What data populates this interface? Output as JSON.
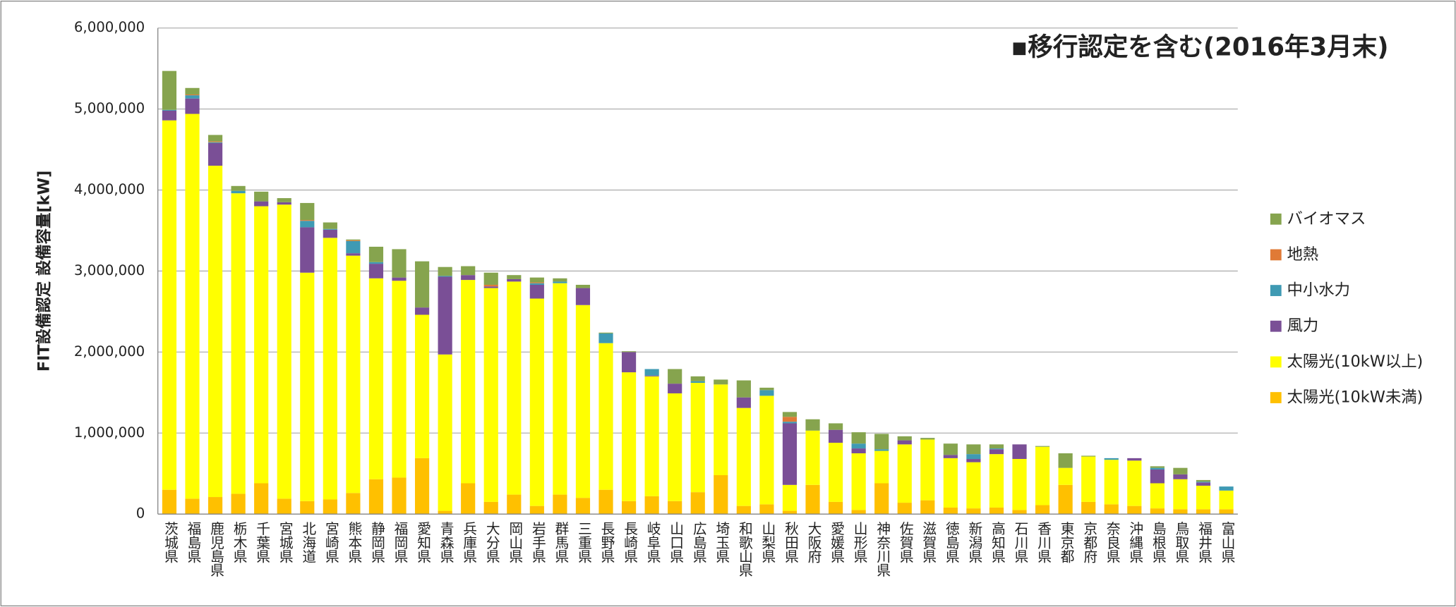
{
  "chart_data": {
    "type": "bar",
    "stacked": true,
    "ylabel": "FIT設備認定 設備容量[kW]",
    "annotation": "▪移行認定を含む(2016年3月末)",
    "ylim": [
      0,
      6000000
    ],
    "yticks": [
      0,
      {
        "value": 1000000,
        "label": "1,000,000"
      },
      {
        "value": 2000000,
        "label": "2,000,000"
      },
      {
        "value": 3000000,
        "label": "3,000,000"
      },
      {
        "value": 4000000,
        "label": "4,000,000"
      },
      {
        "value": 5000000,
        "label": "5,000,000"
      },
      {
        "value": 6000000,
        "label": "6,000,000"
      }
    ],
    "grid": true,
    "legend": "right",
    "categories": [
      "茨城県",
      "福島県",
      "鹿児島県",
      "栃木県",
      "千葉県",
      "宮城県",
      "北海道",
      "宮崎県",
      "熊本県",
      "静岡県",
      "福岡県",
      "愛知県",
      "青森県",
      "兵庫県",
      "大分県",
      "岡山県",
      "岩手県",
      "群馬県",
      "三重県",
      "長野県",
      "長崎県",
      "岐阜県",
      "山口県",
      "広島県",
      "埼玉県",
      "和歌山県",
      "山梨県",
      "秋田県",
      "大阪府",
      "愛媛県",
      "山形県",
      "神奈川県",
      "佐賀県",
      "滋賀県",
      "徳島県",
      "新潟県",
      "高知県",
      "石川県",
      "香川県",
      "東京都",
      "京都府",
      "奈良県",
      "沖縄県",
      "島根県",
      "鳥取県",
      "福井県",
      "富山県"
    ],
    "series": [
      {
        "name": "太陽光(10kW未満)",
        "color": "#ffc000",
        "values": [
          300000,
          190000,
          210000,
          250000,
          380000,
          190000,
          160000,
          180000,
          260000,
          430000,
          450000,
          690000,
          40000,
          380000,
          150000,
          240000,
          100000,
          240000,
          200000,
          300000,
          160000,
          220000,
          160000,
          270000,
          480000,
          100000,
          120000,
          40000,
          360000,
          150000,
          50000,
          380000,
          140000,
          170000,
          80000,
          70000,
          80000,
          50000,
          110000,
          360000,
          150000,
          120000,
          100000,
          70000,
          60000,
          60000,
          60000
        ]
      },
      {
        "name": "太陽光(10kW以上)",
        "color": "#ffff00",
        "values": [
          4560000,
          4750000,
          4090000,
          3710000,
          3420000,
          3630000,
          2820000,
          3230000,
          2930000,
          2480000,
          2430000,
          1770000,
          1930000,
          2510000,
          2640000,
          2630000,
          2560000,
          2610000,
          2380000,
          1810000,
          1590000,
          1480000,
          1330000,
          1350000,
          1120000,
          1210000,
          1340000,
          320000,
          670000,
          730000,
          700000,
          400000,
          720000,
          750000,
          610000,
          570000,
          660000,
          630000,
          720000,
          210000,
          560000,
          550000,
          560000,
          310000,
          370000,
          290000,
          230000
        ]
      },
      {
        "name": "風力",
        "color": "#7a4f96",
        "values": [
          120000,
          190000,
          280000,
          0,
          60000,
          30000,
          560000,
          100000,
          30000,
          180000,
          40000,
          90000,
          960000,
          60000,
          20000,
          30000,
          170000,
          0,
          210000,
          0,
          250000,
          10000,
          120000,
          0,
          0,
          130000,
          0,
          760000,
          0,
          160000,
          60000,
          0,
          50000,
          0,
          40000,
          40000,
          60000,
          180000,
          0,
          0,
          0,
          0,
          30000,
          170000,
          60000,
          40000,
          0
        ]
      },
      {
        "name": "中小水力",
        "color": "#3f9ab3",
        "values": [
          10000,
          40000,
          10000,
          30000,
          0,
          0,
          80000,
          10000,
          150000,
          20000,
          0,
          0,
          10000,
          0,
          0,
          0,
          20000,
          20000,
          0,
          120000,
          0,
          80000,
          0,
          20000,
          0,
          0,
          70000,
          20000,
          0,
          0,
          60000,
          20000,
          0,
          0,
          0,
          60000,
          10000,
          0,
          0,
          0,
          0,
          20000,
          0,
          20000,
          0,
          10000,
          50000
        ]
      },
      {
        "name": "地熱",
        "color": "#e07a36",
        "values": [
          0,
          10000,
          10000,
          0,
          0,
          0,
          10000,
          0,
          10000,
          0,
          0,
          0,
          0,
          0,
          20000,
          0,
          10000,
          0,
          0,
          0,
          0,
          0,
          0,
          0,
          0,
          0,
          0,
          60000,
          0,
          0,
          0,
          0,
          0,
          0,
          0,
          0,
          0,
          0,
          0,
          0,
          0,
          0,
          0,
          0,
          0,
          0,
          0
        ]
      },
      {
        "name": "バイオマス",
        "color": "#86a44e",
        "values": [
          480000,
          80000,
          80000,
          60000,
          120000,
          50000,
          210000,
          80000,
          10000,
          190000,
          350000,
          570000,
          110000,
          110000,
          150000,
          50000,
          60000,
          40000,
          40000,
          10000,
          10000,
          0,
          180000,
          60000,
          60000,
          210000,
          30000,
          60000,
          140000,
          80000,
          140000,
          190000,
          50000,
          20000,
          140000,
          120000,
          50000,
          0,
          10000,
          180000,
          10000,
          0,
          0,
          20000,
          80000,
          20000,
          0
        ]
      }
    ]
  }
}
